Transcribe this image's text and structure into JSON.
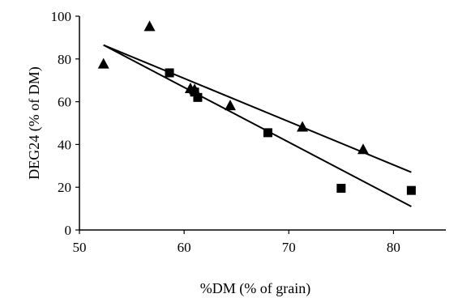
{
  "chart_data": {
    "type": "scatter",
    "xlabel": "%DM (% of grain)",
    "ylabel": "DEG24 (% of DM)",
    "xlim": [
      50,
      85
    ],
    "ylim": [
      0,
      100
    ],
    "x_ticks": [
      50,
      60,
      70,
      80
    ],
    "y_ticks": [
      0,
      20,
      40,
      60,
      80,
      100
    ],
    "grid": false,
    "legend": "none",
    "series": [
      {
        "marker": "triangle",
        "points": [
          {
            "x": 52.3,
            "y": 77.5
          },
          {
            "x": 56.7,
            "y": 95.0
          },
          {
            "x": 60.6,
            "y": 66.0
          },
          {
            "x": 61.0,
            "y": 65.5
          },
          {
            "x": 64.4,
            "y": 58.0
          },
          {
            "x": 71.3,
            "y": 48.0
          },
          {
            "x": 77.1,
            "y": 37.5
          }
        ],
        "trendline": {
          "x": [
            52.3,
            81.7
          ],
          "y": [
            86.5,
            27.0
          ]
        }
      },
      {
        "marker": "square",
        "points": [
          {
            "x": 58.6,
            "y": 73.5
          },
          {
            "x": 61.0,
            "y": 64.5
          },
          {
            "x": 61.3,
            "y": 62.0
          },
          {
            "x": 68.0,
            "y": 45.5
          },
          {
            "x": 75.0,
            "y": 19.5
          },
          {
            "x": 81.7,
            "y": 18.5
          }
        ],
        "trendline": {
          "x": [
            52.3,
            81.7
          ],
          "y": [
            86.5,
            11.0
          ]
        }
      }
    ],
    "colors": {
      "marker": "#000000",
      "line": "#000000",
      "background": "#ffffff"
    }
  }
}
